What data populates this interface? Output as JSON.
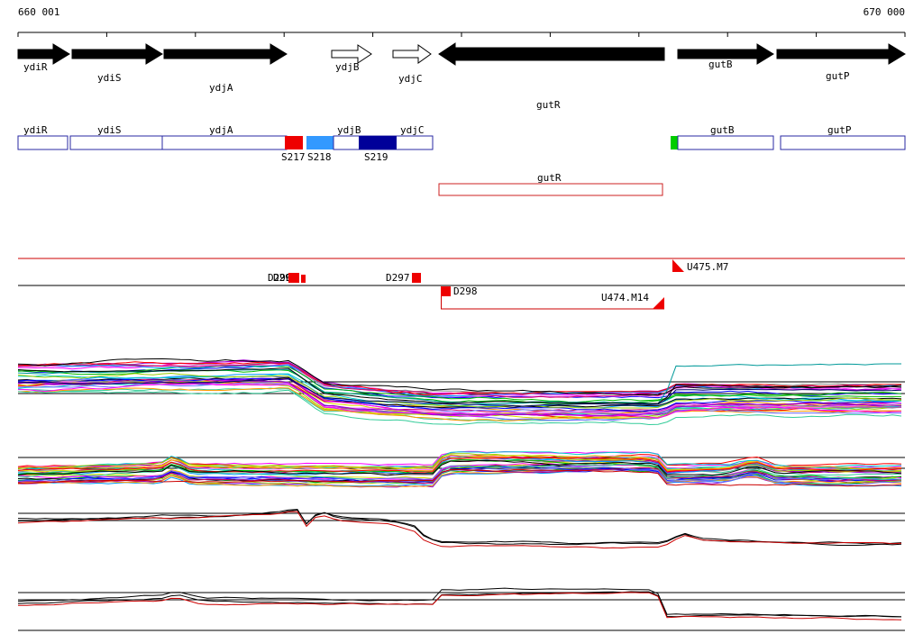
{
  "ruler": {
    "start": "660 001",
    "end": "670 000"
  },
  "arrow_track": {
    "ydiR": "ydiR",
    "ydiS": "ydiS",
    "ydjA": "ydjA",
    "ydjB": "ydjB",
    "ydjC": "ydjC",
    "gutR": "gutR",
    "gutB": "gutB",
    "gutP": "gutP"
  },
  "box_track": {
    "ydiR": "ydiR",
    "ydiS": "ydiS",
    "ydjA": "ydjA",
    "ydjB": "ydjB",
    "ydjC": "ydjC",
    "gutB": "gutB",
    "gutP": "gutP",
    "segments": {
      "s217": "S217",
      "s218": "S218",
      "s219": "S219"
    }
  },
  "transcript_track": {
    "gutR": "gutR"
  },
  "marker_track": {
    "d295": "D295",
    "d296": "D296",
    "d297": "D297",
    "d298": "D298",
    "u475": "U475.M7",
    "u474": "U474.M14"
  },
  "colors": {
    "segment_s217": "#ee0000",
    "segment_s218": "#3399ff",
    "segment_s219": "#000099",
    "green_block": "#00cc00",
    "box_outline": "#2929a3",
    "marker_red": "#ee0000",
    "transcript_red": "#cc2222"
  },
  "palette": [
    "#ff00ff",
    "#9900cc",
    "#0000ff",
    "#0099ff",
    "#00cccc",
    "#00bb00",
    "#99cc00",
    "#dddd00",
    "#ff9900",
    "#ff0000",
    "#cc0066",
    "#6666ff",
    "#33cc99",
    "#000000",
    "#888888",
    "#ff66ff"
  ],
  "chart_data": [
    {
      "name": "expression-panel-1",
      "type": "line",
      "x_range": [
        660001,
        670000
      ],
      "ref_lines_y": [
        424,
        437
      ],
      "bundles": [
        {
          "n": 34,
          "spread": 34,
          "noise": 2.6,
          "base": [
            [
              0,
              420
            ],
            [
              0.305,
              417
            ],
            [
              0.32,
              426
            ],
            [
              0.345,
              442
            ],
            [
              0.4,
              447
            ],
            [
              0.477,
              452
            ],
            [
              0.727,
              452
            ],
            [
              0.74,
              444
            ],
            [
              1,
              444
            ]
          ]
        }
      ],
      "series": [
        {
          "color": "#009999",
          "base": [
            [
              0,
              414
            ],
            [
              0.305,
              412
            ],
            [
              0.345,
              438
            ],
            [
              0.477,
              449
            ],
            [
              0.727,
              449
            ],
            [
              0.74,
              407
            ],
            [
              1,
              407
            ]
          ]
        },
        {
          "color": "#000000",
          "base": [
            [
              0,
              410
            ],
            [
              0.305,
              408
            ],
            [
              0.345,
              436
            ],
            [
              0.477,
              448
            ],
            [
              0.727,
              449
            ],
            [
              0.74,
              428
            ],
            [
              1,
              429
            ]
          ]
        },
        {
          "color": "#000066",
          "base": [
            [
              0,
              424
            ],
            [
              0.305,
              422
            ],
            [
              0.345,
              444
            ],
            [
              0.477,
              452
            ],
            [
              0.727,
              452
            ],
            [
              0.74,
              436
            ],
            [
              1,
              436
            ]
          ]
        }
      ]
    },
    {
      "name": "expression-panel-2",
      "type": "line",
      "x_range": [
        660001,
        670000
      ],
      "ref_lines_y": [
        508,
        520
      ],
      "bundles": [
        {
          "n": 30,
          "spread": 20,
          "noise": 2.4,
          "base": [
            [
              0,
              528
            ],
            [
              0.16,
              525
            ],
            [
              0.175,
              517
            ],
            [
              0.195,
              526
            ],
            [
              0.3,
              527
            ],
            [
              0.47,
              528
            ],
            [
              0.48,
              514
            ],
            [
              0.72,
              515
            ],
            [
              0.73,
              528
            ],
            [
              0.8,
              526
            ],
            [
              0.83,
              519
            ],
            [
              0.855,
              527
            ],
            [
              1,
              528
            ]
          ]
        }
      ],
      "series": [
        {
          "color": "#cc0000",
          "noise": 2.0,
          "base": [
            [
              0,
              537
            ],
            [
              0.47,
              537
            ],
            [
              0.48,
              525
            ],
            [
              0.72,
              525
            ],
            [
              0.73,
              539
            ],
            [
              1,
              539
            ]
          ]
        }
      ]
    },
    {
      "name": "expression-panel-3",
      "type": "line",
      "x_range": [
        660001,
        670000
      ],
      "ref_lines_y": [
        570,
        578
      ],
      "bundles": [],
      "series": [
        {
          "color": "#000000",
          "noise": 1.6,
          "base": [
            [
              0,
              576
            ],
            [
              0.12,
              574
            ],
            [
              0.24,
              571
            ],
            [
              0.3,
              567
            ],
            [
              0.313,
              561
            ],
            [
              0.325,
              580
            ],
            [
              0.34,
              566
            ],
            [
              0.36,
              573
            ],
            [
              0.42,
              578
            ],
            [
              0.447,
              584
            ],
            [
              0.46,
              597
            ],
            [
              0.477,
              602
            ],
            [
              0.727,
              603
            ],
            [
              0.74,
              596
            ],
            [
              0.752,
              592
            ],
            [
              0.775,
              599
            ],
            [
              0.86,
              602
            ],
            [
              1,
              602
            ]
          ]
        },
        {
          "color": "#000000",
          "noise": 1.6,
          "base": [
            [
              0,
              578
            ],
            [
              0.12,
              576
            ],
            [
              0.24,
              573
            ],
            [
              0.3,
              569
            ],
            [
              0.313,
              563
            ],
            [
              0.325,
              582
            ],
            [
              0.34,
              568
            ],
            [
              0.36,
              575
            ],
            [
              0.42,
              580
            ],
            [
              0.447,
              586
            ],
            [
              0.46,
              599
            ],
            [
              0.477,
              604
            ],
            [
              0.727,
              605
            ],
            [
              0.74,
              598
            ],
            [
              0.752,
              594
            ],
            [
              0.775,
              601
            ],
            [
              0.86,
              604
            ],
            [
              1,
              604
            ]
          ]
        },
        {
          "color": "#cc0000",
          "noise": 1.8,
          "base": [
            [
              0,
              581
            ],
            [
              0.12,
              579
            ],
            [
              0.24,
              576
            ],
            [
              0.3,
              572
            ],
            [
              0.313,
              566
            ],
            [
              0.325,
              585
            ],
            [
              0.34,
              571
            ],
            [
              0.36,
              578
            ],
            [
              0.42,
              582
            ],
            [
              0.447,
              589
            ],
            [
              0.46,
              601
            ],
            [
              0.477,
              606
            ],
            [
              0.727,
              607
            ],
            [
              0.74,
              600
            ],
            [
              0.752,
              596
            ],
            [
              0.775,
              603
            ],
            [
              0.86,
              606
            ],
            [
              1,
              606
            ]
          ]
        }
      ]
    },
    {
      "name": "expression-panel-4",
      "type": "line",
      "x_range": [
        660001,
        670000
      ],
      "ref_lines_y": [
        658,
        666,
        700
      ],
      "bundles": [],
      "series": [
        {
          "color": "#000000",
          "noise": 1.4,
          "base": [
            [
              0,
              668
            ],
            [
              0.16,
              663
            ],
            [
              0.178,
              658
            ],
            [
              0.21,
              665
            ],
            [
              0.3,
              666
            ],
            [
              0.47,
              667
            ],
            [
              0.478,
              656
            ],
            [
              0.72,
              655
            ],
            [
              0.73,
              682
            ],
            [
              0.86,
              681
            ],
            [
              1,
              682
            ]
          ]
        },
        {
          "color": "#000000",
          "noise": 1.4,
          "base": [
            [
              0,
              670
            ],
            [
              0.16,
              665
            ],
            [
              0.178,
              660
            ],
            [
              0.21,
              667
            ],
            [
              0.3,
              668
            ],
            [
              0.47,
              669
            ],
            [
              0.478,
              658
            ],
            [
              0.72,
              657
            ],
            [
              0.73,
              684
            ],
            [
              0.86,
              683
            ],
            [
              1,
              684
            ]
          ]
        },
        {
          "color": "#cc0000",
          "noise": 1.6,
          "base": [
            [
              0,
              672
            ],
            [
              0.16,
              667
            ],
            [
              0.178,
              662
            ],
            [
              0.21,
              669
            ],
            [
              0.3,
              670
            ],
            [
              0.47,
              671
            ],
            [
              0.478,
              660
            ],
            [
              0.72,
              659
            ],
            [
              0.73,
              687
            ],
            [
              0.86,
              686
            ],
            [
              1,
              687
            ]
          ]
        }
      ]
    }
  ]
}
